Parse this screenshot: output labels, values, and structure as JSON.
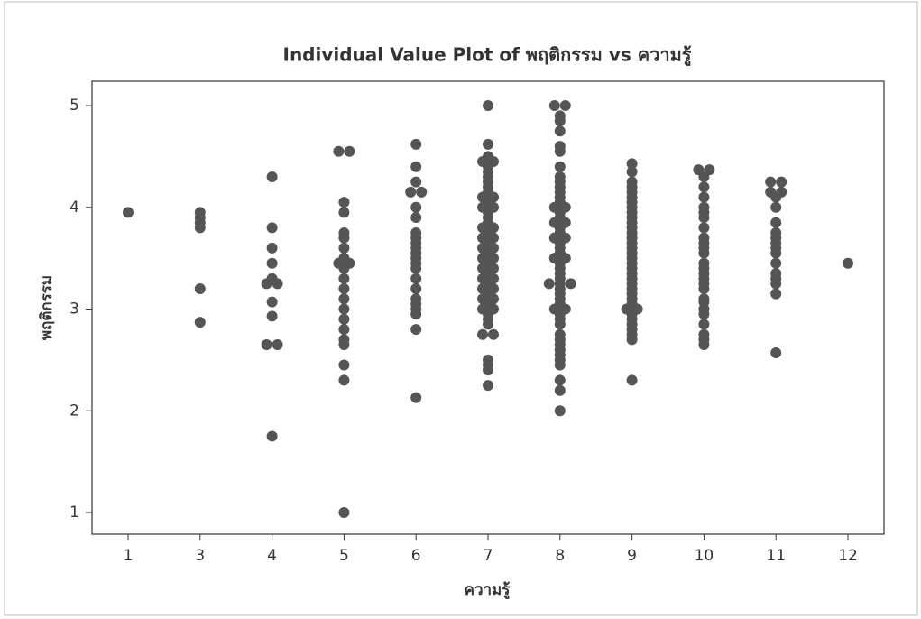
{
  "chart_data": {
    "type": "individual-value",
    "title": "Individual Value Plot of พฤติกรรม vs ความรู้",
    "x_label": "ความรู้",
    "y_label": "พฤติกรรม",
    "categories": [
      "1",
      "3",
      "4",
      "5",
      "6",
      "7",
      "8",
      "9",
      "10",
      "11",
      "12"
    ],
    "values": [
      [
        3.95
      ],
      [
        3.95,
        3.9,
        3.85,
        3.8,
        3.2,
        2.87
      ],
      [
        4.3,
        3.8,
        3.6,
        3.45,
        3.3,
        3.25,
        3.25,
        3.07,
        2.93,
        2.65,
        2.65,
        1.75
      ],
      [
        4.55,
        4.55,
        4.05,
        3.95,
        3.75,
        3.7,
        3.6,
        3.5,
        3.45,
        3.45,
        3.4,
        3.3,
        3.2,
        3.1,
        3.0,
        2.9,
        2.8,
        2.7,
        2.65,
        2.45,
        2.3,
        1.0
      ],
      [
        4.62,
        4.4,
        4.25,
        4.15,
        4.15,
        4.0,
        3.9,
        3.75,
        3.7,
        3.65,
        3.6,
        3.55,
        3.5,
        3.45,
        3.4,
        3.3,
        3.2,
        3.1,
        3.05,
        3.0,
        2.95,
        2.8,
        2.13
      ],
      [
        5.0,
        4.62,
        4.5,
        4.45,
        4.45,
        4.4,
        4.35,
        4.3,
        4.25,
        4.2,
        4.15,
        4.1,
        4.1,
        4.05,
        4.0,
        4.0,
        3.95,
        3.9,
        3.85,
        3.8,
        3.8,
        3.75,
        3.7,
        3.7,
        3.65,
        3.6,
        3.6,
        3.55,
        3.5,
        3.5,
        3.45,
        3.4,
        3.4,
        3.35,
        3.3,
        3.3,
        3.25,
        3.2,
        3.2,
        3.15,
        3.1,
        3.1,
        3.05,
        3.0,
        3.0,
        2.95,
        2.9,
        2.85,
        2.75,
        2.75,
        2.5,
        2.45,
        2.4,
        2.25
      ],
      [
        5.0,
        5.0,
        4.9,
        4.85,
        4.75,
        4.6,
        4.55,
        4.4,
        4.3,
        4.25,
        4.2,
        4.15,
        4.1,
        4.05,
        4.0,
        4.0,
        3.95,
        3.9,
        3.85,
        3.85,
        3.8,
        3.75,
        3.7,
        3.7,
        3.65,
        3.6,
        3.55,
        3.5,
        3.5,
        3.45,
        3.4,
        3.35,
        3.3,
        3.25,
        3.25,
        3.25,
        3.2,
        3.15,
        3.1,
        3.05,
        3.0,
        3.0,
        2.95,
        2.9,
        2.85,
        2.75,
        2.7,
        2.65,
        2.6,
        2.55,
        2.5,
        2.45,
        2.3,
        2.2,
        2.0
      ],
      [
        4.43,
        4.35,
        4.25,
        4.2,
        4.15,
        4.1,
        4.05,
        4.0,
        3.95,
        3.9,
        3.85,
        3.8,
        3.75,
        3.7,
        3.65,
        3.6,
        3.55,
        3.5,
        3.45,
        3.4,
        3.35,
        3.3,
        3.25,
        3.2,
        3.15,
        3.1,
        3.05,
        3.0,
        3.0,
        2.95,
        2.9,
        2.85,
        2.8,
        2.75,
        2.7,
        2.3
      ],
      [
        4.37,
        4.37,
        4.3,
        4.2,
        4.1,
        4.0,
        3.95,
        3.9,
        3.8,
        3.7,
        3.65,
        3.6,
        3.55,
        3.45,
        3.4,
        3.35,
        3.3,
        3.25,
        3.2,
        3.1,
        3.07,
        3.0,
        2.95,
        2.85,
        2.75,
        2.7,
        2.65
      ],
      [
        4.25,
        4.25,
        4.15,
        4.15,
        4.1,
        4.0,
        3.85,
        3.75,
        3.7,
        3.65,
        3.6,
        3.55,
        3.45,
        3.35,
        3.3,
        3.25,
        3.15,
        2.57
      ],
      [
        3.45
      ]
    ],
    "color": "#555555",
    "ylim": [
      0.787,
      5.24
    ],
    "yticks": [
      1,
      2,
      3,
      4,
      5
    ]
  }
}
